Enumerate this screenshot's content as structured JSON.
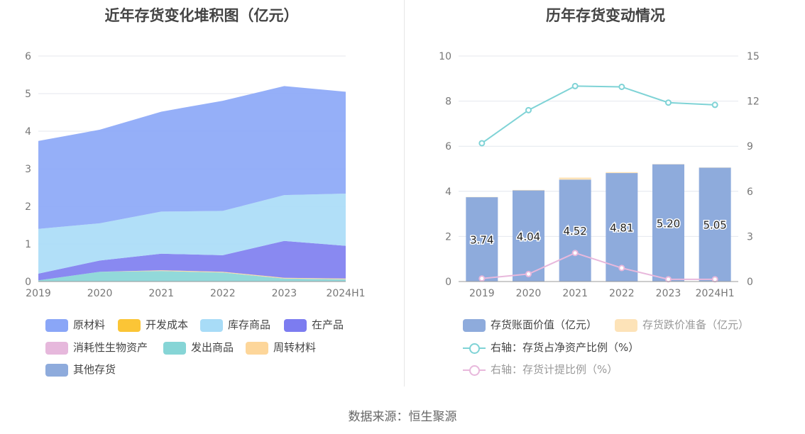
{
  "source_label": "数据来源：恒生聚源",
  "chart_data": [
    {
      "type": "area",
      "title": "近年存货变化堆积图（亿元）",
      "categories": [
        "2019",
        "2020",
        "2021",
        "2022",
        "2023",
        "2024H1"
      ],
      "ylim": [
        0,
        6
      ],
      "yticks": [
        "0",
        "1",
        "2",
        "3",
        "4",
        "5",
        "6"
      ],
      "stacked": true,
      "series": [
        {
          "name": "原材料",
          "color": "#8aa6f7",
          "values": [
            2.34,
            2.49,
            2.66,
            2.93,
            2.9,
            2.71
          ]
        },
        {
          "name": "开发成本",
          "color": "#fbc536",
          "values": [
            0,
            0,
            0,
            0,
            0,
            0
          ]
        },
        {
          "name": "库存商品",
          "color": "#a8dcf7",
          "values": [
            1.19,
            0.99,
            1.12,
            1.18,
            1.22,
            1.39
          ]
        },
        {
          "name": "在产品",
          "color": "#7c7cf0",
          "values": [
            0.18,
            0.3,
            0.44,
            0.44,
            0.98,
            0.87
          ]
        },
        {
          "name": "消耗性生物资产",
          "color": "#e6b8dc",
          "values": [
            0,
            0,
            0,
            0,
            0,
            0
          ]
        },
        {
          "name": "发出商品",
          "color": "#86d5d6",
          "values": [
            0.03,
            0.26,
            0.28,
            0.24,
            0.08,
            0.06
          ]
        },
        {
          "name": "周转材料",
          "color": "#fdd69a",
          "values": [
            0,
            0,
            0.02,
            0.02,
            0.02,
            0.02
          ]
        },
        {
          "name": "其他存货",
          "color": "#8eabdc",
          "values": [
            0,
            0,
            0,
            0,
            0,
            0
          ]
        }
      ],
      "legend_position": "bottom"
    },
    {
      "type": "bar",
      "title": "历年存货变动情况",
      "categories": [
        "2019",
        "2020",
        "2021",
        "2022",
        "2023",
        "2024H1"
      ],
      "ylim": [
        0,
        10
      ],
      "yticks": [
        "0",
        "2",
        "4",
        "6",
        "8",
        "10"
      ],
      "y2lim": [
        0,
        15
      ],
      "y2ticks": [
        "0",
        "3",
        "6",
        "9",
        "12",
        "15"
      ],
      "series": [
        {
          "name": "存货账面价值（亿元）",
          "color": "#8eabdc",
          "values": [
            3.74,
            4.04,
            4.52,
            4.81,
            5.2,
            5.05
          ],
          "labels": [
            "3.74",
            "4.04",
            "4.52",
            "4.81",
            "5.20",
            "5.05"
          ]
        },
        {
          "name": "存货跌价准备（亿元）",
          "color": "#fde3b8",
          "values": [
            0.01,
            0.02,
            0.09,
            0.04,
            0.01,
            0.01
          ]
        },
        {
          "name": "右轴：存货占净资产比例（%）",
          "color": "#7fd3d6",
          "axis": "right",
          "values": [
            9.2,
            11.4,
            13.0,
            12.95,
            11.9,
            11.75
          ]
        },
        {
          "name": "右轴：存货计提比例（%）",
          "color": "#e8b8dc",
          "axis": "right",
          "values": [
            0.2,
            0.5,
            1.9,
            0.9,
            0.15,
            0.15
          ]
        }
      ],
      "legend_position": "bottom"
    }
  ]
}
